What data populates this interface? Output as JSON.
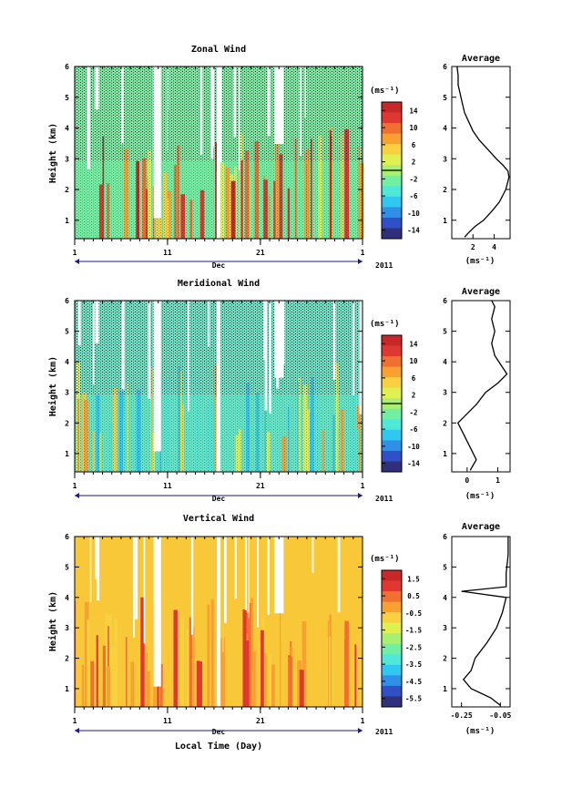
{
  "chart_data": [
    {
      "id": "zonal",
      "type": "heatmap",
      "title": "Zonal Wind",
      "ylabel": "Height (km)",
      "y_ticks": [
        "1",
        "2",
        "3",
        "4",
        "5",
        "6"
      ],
      "ylim": [
        0.4,
        6.0
      ],
      "x_ticks": [
        "1",
        "11",
        "21",
        "1"
      ],
      "x_month": "Dec",
      "year": "2011",
      "colorbar": {
        "unit": "(ms⁻¹)",
        "ticks": [
          "14",
          "10",
          "6",
          "2",
          "-2",
          "-6",
          "-10",
          "-14"
        ],
        "range": [
          -16,
          16
        ],
        "colors": [
          "#30307a",
          "#3050c8",
          "#3090e8",
          "#30c8f0",
          "#50e8d8",
          "#70f0a0",
          "#a8f070",
          "#e0f050",
          "#f8d040",
          "#f8a030",
          "#f07030",
          "#e03830",
          "#c82828"
        ]
      },
      "dominant_color": "#70f0a0",
      "profile": {
        "title": "Average",
        "xlabel": "(ms⁻¹)",
        "x_ticks": [
          "2",
          "4"
        ],
        "xlim": [
          0,
          5.5
        ],
        "points": [
          [
            1.2,
            0.45
          ],
          [
            1.6,
            0.6
          ],
          [
            2.2,
            0.8
          ],
          [
            3.0,
            1.0
          ],
          [
            3.8,
            1.3
          ],
          [
            4.5,
            1.6
          ],
          [
            5.1,
            2.0
          ],
          [
            5.4,
            2.4
          ],
          [
            5.3,
            2.6
          ],
          [
            4.8,
            2.8
          ],
          [
            4.2,
            3.0
          ],
          [
            3.4,
            3.3
          ],
          [
            2.6,
            3.6
          ],
          [
            2.0,
            3.9
          ],
          [
            1.6,
            4.2
          ],
          [
            1.2,
            4.5
          ],
          [
            1.0,
            4.8
          ],
          [
            0.8,
            5.1
          ],
          [
            0.6,
            5.4
          ],
          [
            0.6,
            5.7
          ],
          [
            0.5,
            6.0
          ]
        ]
      }
    },
    {
      "id": "meridional",
      "type": "heatmap",
      "title": "Meridional Wind",
      "ylabel": "Height (km)",
      "y_ticks": [
        "1",
        "2",
        "3",
        "4",
        "5",
        "6"
      ],
      "ylim": [
        0.4,
        6.0
      ],
      "x_ticks": [
        "1",
        "11",
        "21",
        "1"
      ],
      "x_month": "Dec",
      "year": "2011",
      "colorbar": {
        "unit": "(ms⁻¹)",
        "ticks": [
          "14",
          "10",
          "6",
          "2",
          "-2",
          "-6",
          "-10",
          "-14"
        ],
        "range": [
          -16,
          16
        ],
        "colors": [
          "#30307a",
          "#3050c8",
          "#3090e8",
          "#30c8f0",
          "#50e8d8",
          "#70f0a0",
          "#a8f070",
          "#e0f050",
          "#f8d040",
          "#f8a030",
          "#f07030",
          "#e03830",
          "#c82828"
        ]
      },
      "dominant_color": "#60e8c8",
      "profile": {
        "title": "Average",
        "xlabel": "(ms⁻¹)",
        "x_ticks": [
          "0",
          "1"
        ],
        "xlim": [
          -0.5,
          1.4
        ],
        "points": [
          [
            0.1,
            0.45
          ],
          [
            0.3,
            0.8
          ],
          [
            0.1,
            1.2
          ],
          [
            -0.1,
            1.6
          ],
          [
            -0.3,
            2.0
          ],
          [
            0.0,
            2.3
          ],
          [
            0.3,
            2.6
          ],
          [
            0.6,
            3.0
          ],
          [
            1.0,
            3.3
          ],
          [
            1.3,
            3.6
          ],
          [
            1.1,
            3.9
          ],
          [
            0.9,
            4.2
          ],
          [
            0.8,
            4.6
          ],
          [
            0.9,
            5.0
          ],
          [
            0.8,
            5.4
          ],
          [
            0.9,
            5.8
          ],
          [
            0.8,
            6.0
          ]
        ]
      }
    },
    {
      "id": "vertical",
      "type": "heatmap",
      "title": "Vertical Wind",
      "ylabel": "Height (km)",
      "xlabel": "Local Time (Day)",
      "y_ticks": [
        "1",
        "2",
        "3",
        "4",
        "5",
        "6"
      ],
      "ylim": [
        0.4,
        6.0
      ],
      "x_ticks": [
        "1",
        "11",
        "21",
        "1"
      ],
      "x_month": "Dec",
      "year": "2011",
      "colorbar": {
        "unit": "(ms⁻¹)",
        "ticks": [
          "1.5",
          "0.5",
          "-0.5",
          "-1.5",
          "-2.5",
          "-3.5",
          "-4.5",
          "-5.5"
        ],
        "range": [
          -6,
          2
        ],
        "colors": [
          "#30307a",
          "#3050c8",
          "#3090e8",
          "#30c8f0",
          "#50e8d8",
          "#70f0a0",
          "#a8f070",
          "#e0f050",
          "#f8d040",
          "#f8a030",
          "#f07030",
          "#e03830",
          "#c82828"
        ]
      },
      "dominant_color": "#f8c838",
      "profile": {
        "title": "Average",
        "xlabel": "(ms⁻¹)",
        "x_ticks": [
          "-0.25",
          "-0.05"
        ],
        "xlim": [
          -0.3,
          0.0
        ],
        "points": [
          [
            -0.05,
            0.45
          ],
          [
            -0.1,
            0.7
          ],
          [
            -0.2,
            1.0
          ],
          [
            -0.24,
            1.3
          ],
          [
            -0.2,
            1.6
          ],
          [
            -0.18,
            2.0
          ],
          [
            -0.12,
            2.5
          ],
          [
            -0.07,
            3.0
          ],
          [
            -0.04,
            3.5
          ],
          [
            -0.02,
            4.0
          ],
          [
            -0.25,
            4.2
          ],
          [
            -0.02,
            4.35
          ],
          [
            -0.02,
            4.8
          ],
          [
            -0.01,
            5.4
          ],
          [
            -0.01,
            6.0
          ]
        ]
      }
    }
  ]
}
